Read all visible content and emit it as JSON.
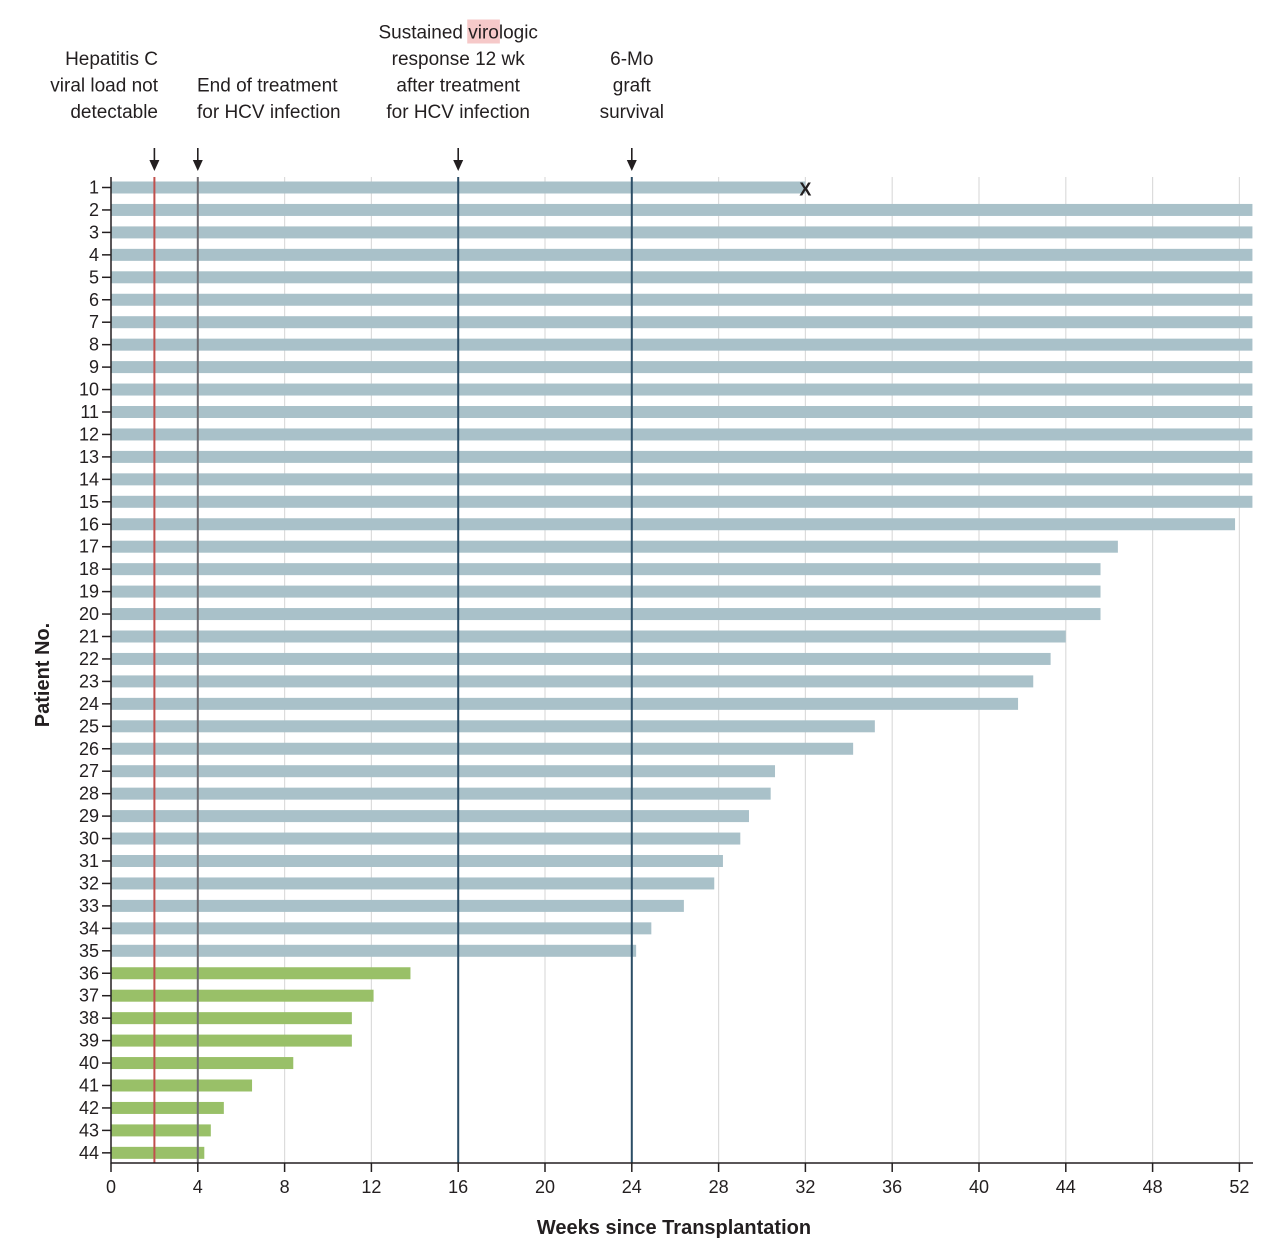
{
  "chart_data": {
    "type": "bar",
    "orientation": "horizontal",
    "xlabel": "Weeks since Transplantation",
    "ylabel": "Patient No.",
    "xlim": [
      0,
      53
    ],
    "xticks": [
      0,
      4,
      8,
      12,
      16,
      20,
      24,
      28,
      32,
      36,
      40,
      44,
      48,
      52
    ],
    "grid": "vertical",
    "categories": [
      "1",
      "2",
      "3",
      "4",
      "5",
      "6",
      "7",
      "8",
      "9",
      "10",
      "11",
      "12",
      "13",
      "14",
      "15",
      "16",
      "17",
      "18",
      "19",
      "20",
      "21",
      "22",
      "23",
      "24",
      "25",
      "26",
      "27",
      "28",
      "29",
      "30",
      "31",
      "32",
      "33",
      "34",
      "35",
      "36",
      "37",
      "38",
      "39",
      "40",
      "41",
      "42",
      "43",
      "44"
    ],
    "values": [
      32,
      52.6,
      52.6,
      52.6,
      52.6,
      52.6,
      52.6,
      52.6,
      52.6,
      52.6,
      52.6,
      52.6,
      52.6,
      52.6,
      52.6,
      51.8,
      46.4,
      45.6,
      45.6,
      45.6,
      44.0,
      43.3,
      42.5,
      41.8,
      35.2,
      34.2,
      30.6,
      30.4,
      29.4,
      29.0,
      28.2,
      27.8,
      26.4,
      24.9,
      24.2,
      13.8,
      12.1,
      11.1,
      11.1,
      8.4,
      6.5,
      5.2,
      4.6,
      4.3
    ],
    "bar_colors": {
      "established": "#a9c1c9",
      "recent": "#99c068"
    },
    "recent_from_patient": 36,
    "markers": [
      {
        "patient": "1",
        "x": 32,
        "label": "X"
      }
    ],
    "reference_lines": [
      {
        "x": 2,
        "color": "#c0504d",
        "label": [
          "Hepatitis C",
          "viral load not",
          "detectable"
        ]
      },
      {
        "x": 4,
        "color": "#6d6a6f",
        "label": [
          "End of treatment",
          "for HCV infection"
        ]
      },
      {
        "x": 16,
        "color": "#2b4d66",
        "label": [
          "Sustained virologic",
          "response 12 wk",
          "after treatment",
          "for HCV infection"
        ]
      },
      {
        "x": 24,
        "color": "#2b4d66",
        "label": [
          "6-Mo",
          "graft",
          "survival"
        ]
      }
    ],
    "axis_color": "#231f20",
    "grid_color": "#dcdcdc",
    "highlight_color": "#f6c9c9"
  }
}
